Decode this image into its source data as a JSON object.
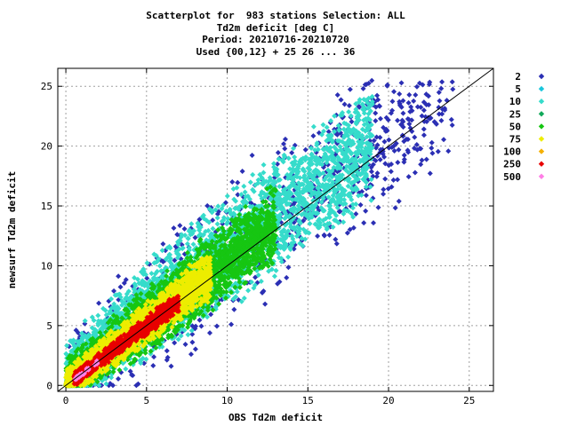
{
  "chart_data": {
    "type": "scatter",
    "title_lines": [
      "Scatterplot for  983 stations Selection: ALL",
      "Td2m deficit [deg C]",
      "Period: 20210716-20210720",
      "Used {00,12} + 25 26 ... 36"
    ],
    "xlabel": "OBS Td2m deficit",
    "ylabel": "newsurf Td2m deficit",
    "xlim": [
      -0.5,
      26.5
    ],
    "ylim": [
      -0.5,
      26.5
    ],
    "x_ticks": [
      0,
      5,
      10,
      15,
      20,
      25
    ],
    "y_ticks": [
      0,
      5,
      10,
      15,
      20,
      25
    ],
    "grid": true,
    "diagonal_line": true,
    "legend_position": "right",
    "legend": [
      {
        "label": "2",
        "color": "#2b2fb4"
      },
      {
        "label": "5",
        "color": "#19c6dc"
      },
      {
        "label": "10",
        "color": "#36dccb"
      },
      {
        "label": "25",
        "color": "#11a95a"
      },
      {
        "label": "50",
        "color": "#16c612"
      },
      {
        "label": "75",
        "color": "#eded00"
      },
      {
        "label": "100",
        "color": "#f5b000"
      },
      {
        "label": "250",
        "color": "#e80000"
      },
      {
        "label": "500",
        "color": "#ff7ee6"
      }
    ],
    "density_bands": [
      {
        "level": "2",
        "x_range": [
          0,
          24
        ],
        "y_offset_range": [
          -6,
          8
        ]
      },
      {
        "level": "10",
        "x_range": [
          0,
          19
        ],
        "y_offset_range": [
          -4,
          6.5
        ]
      },
      {
        "level": "50",
        "x_range": [
          0,
          13
        ],
        "y_offset_range": [
          -3,
          4
        ]
      },
      {
        "level": "75",
        "x_range": [
          0,
          9
        ],
        "y_offset_range": [
          -2,
          2.5
        ]
      },
      {
        "level": "250",
        "x_range": [
          0.5,
          7
        ],
        "y_offset_range": [
          -1,
          1
        ]
      },
      {
        "level": "500",
        "x_range": [
          0.5,
          2
        ],
        "y_offset_range": [
          -0.4,
          0.4
        ]
      }
    ]
  }
}
